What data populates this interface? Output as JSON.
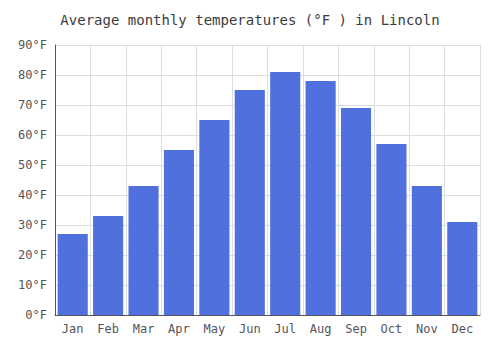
{
  "chart_data": {
    "type": "bar",
    "title": "Average monthly temperatures (°F ) in Lincoln",
    "categories": [
      "Jan",
      "Feb",
      "Mar",
      "Apr",
      "May",
      "Jun",
      "Jul",
      "Aug",
      "Sep",
      "Oct",
      "Nov",
      "Dec"
    ],
    "values": [
      27,
      33,
      43,
      55,
      65,
      75,
      81,
      78,
      69,
      57,
      43,
      31
    ],
    "ylim": [
      0,
      90
    ],
    "yticks": [
      {
        "value": 0,
        "label": "0°F"
      },
      {
        "value": 10,
        "label": "10°F"
      },
      {
        "value": 20,
        "label": "20°F"
      },
      {
        "value": 30,
        "label": "30°F"
      },
      {
        "value": 40,
        "label": "40°F"
      },
      {
        "value": 50,
        "label": "50°F"
      },
      {
        "value": 60,
        "label": "60°F"
      },
      {
        "value": 70,
        "label": "70°F"
      },
      {
        "value": 80,
        "label": "80°F"
      },
      {
        "value": 90,
        "label": "90°F"
      }
    ],
    "grid": true
  }
}
